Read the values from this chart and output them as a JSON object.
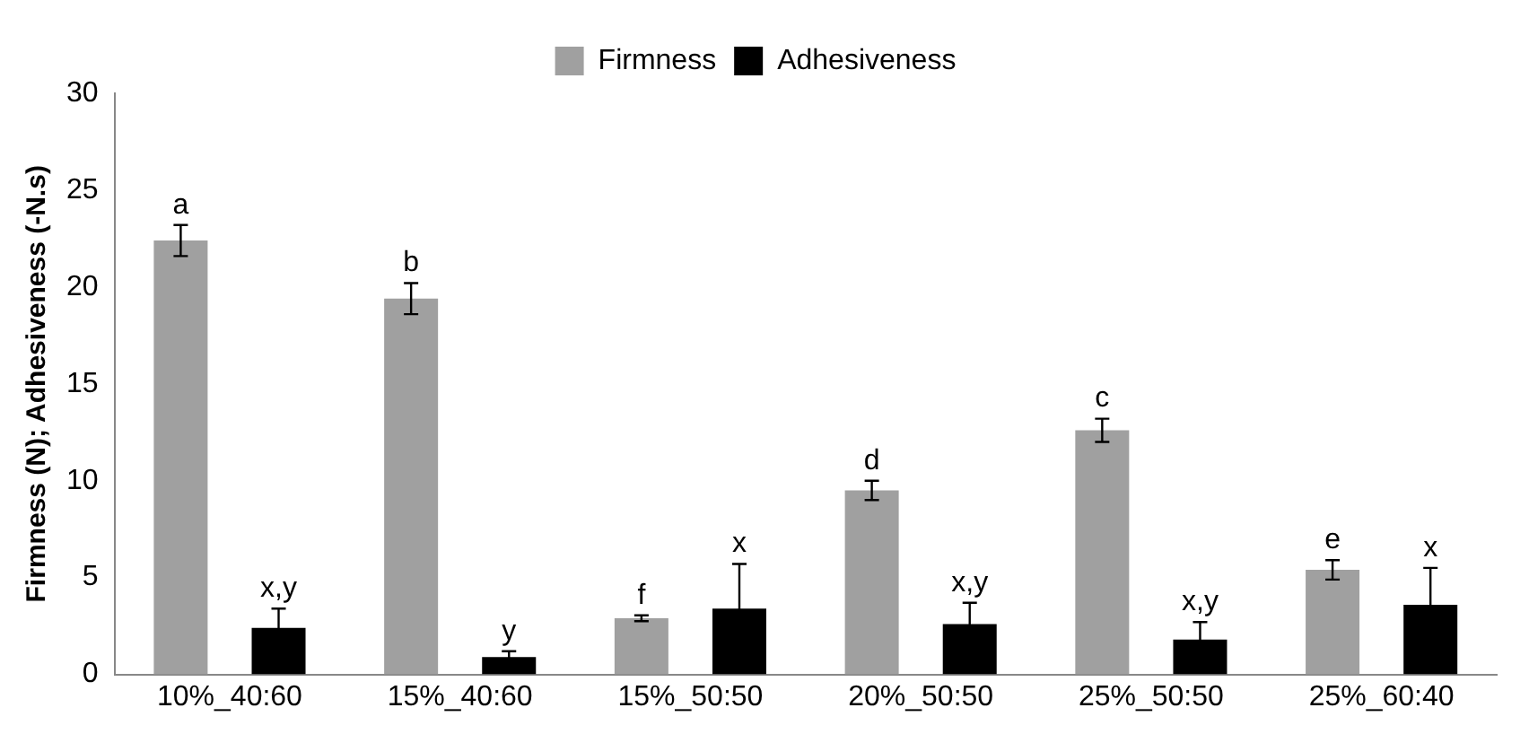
{
  "chart_data": {
    "type": "bar",
    "ylabel": "Firmness (N); Adhesiveness (-N.s)",
    "categories": [
      "10%_40:60",
      "15%_40:60",
      "15%_50:50",
      "20%_50:50",
      "25%_50:50",
      "25%_60:40"
    ],
    "series": [
      {
        "name": "Firmness",
        "color": "#a0a0a0",
        "values": [
          22.4,
          19.4,
          2.9,
          9.5,
          12.6,
          5.4
        ],
        "errors": [
          0.8,
          0.8,
          0.15,
          0.5,
          0.6,
          0.5
        ]
      },
      {
        "name": "Adhesiveness",
        "color": "#000000",
        "values": [
          2.4,
          0.9,
          3.4,
          2.6,
          1.8,
          3.6
        ],
        "errors": [
          1.0,
          0.3,
          2.3,
          1.1,
          0.9,
          1.9
        ]
      }
    ],
    "ylim": [
      0,
      30
    ],
    "yticks": [
      0,
      5,
      10,
      15,
      20,
      25,
      30
    ],
    "grid": false,
    "legend": "top",
    "annotations": [
      "a",
      "x,y",
      "b",
      "y",
      "f",
      "x",
      "d",
      "x,y",
      "c",
      "x,y",
      "e",
      "x"
    ]
  }
}
